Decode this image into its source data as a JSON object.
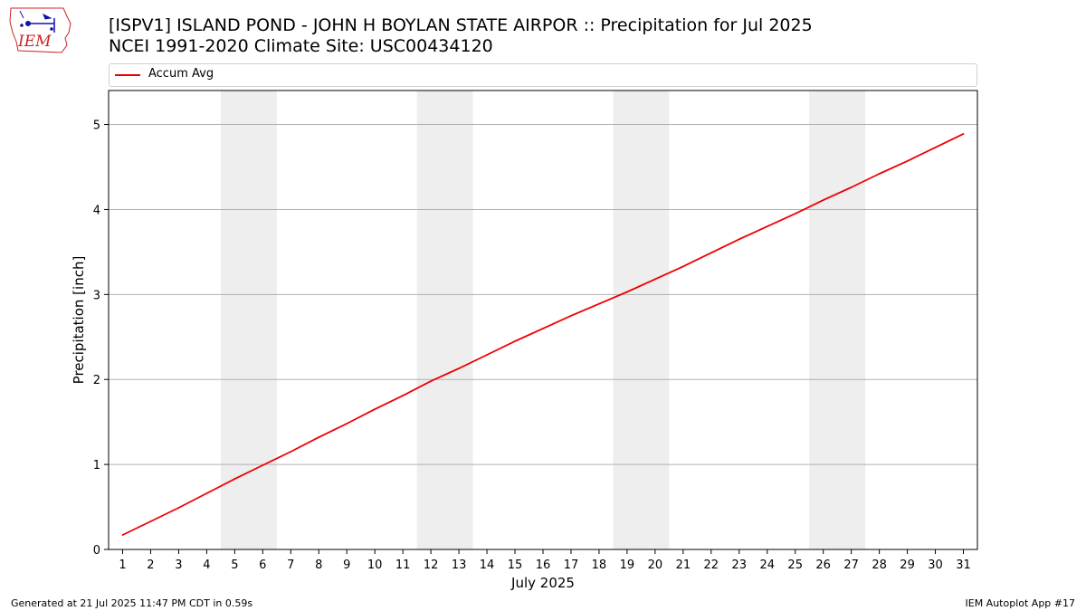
{
  "header": {
    "title_line1": "[ISPV1] ISLAND POND - JOHN H BOYLAN STATE AIRPOR :: Precipitation for Jul 2025",
    "title_line2": "NCEI 1991-2020 Climate Site: USC00434120"
  },
  "logo": {
    "text": "IEM"
  },
  "footer": {
    "left": "Generated at 21 Jul 2025 11:47 PM CDT in 0.59s",
    "right": "IEM Autoplot App #17"
  },
  "colors": {
    "series": "#ee0000",
    "weekend_band": "#eeeeee",
    "grid": "#b0b0b0",
    "logo_accent": "#cc2222",
    "logo_blue": "#1111aa"
  },
  "chart_data": {
    "type": "line",
    "xlabel": "July 2025",
    "ylabel": "Precipitation [inch]",
    "xlim": [
      0.5,
      31.5
    ],
    "ylim": [
      0,
      5.4
    ],
    "x": [
      1,
      2,
      3,
      4,
      5,
      6,
      7,
      8,
      9,
      10,
      11,
      12,
      13,
      14,
      15,
      16,
      17,
      18,
      19,
      20,
      21,
      22,
      23,
      24,
      25,
      26,
      27,
      28,
      29,
      30,
      31
    ],
    "x_tick_labels": [
      "1",
      "2",
      "3",
      "4",
      "5",
      "6",
      "7",
      "8",
      "9",
      "10",
      "11",
      "12",
      "13",
      "14",
      "15",
      "16",
      "17",
      "18",
      "19",
      "20",
      "21",
      "22",
      "23",
      "24",
      "25",
      "26",
      "27",
      "28",
      "29",
      "30",
      "31"
    ],
    "y_ticks": [
      0,
      1,
      2,
      3,
      4,
      5
    ],
    "y_tick_labels": [
      "0",
      "1",
      "2",
      "3",
      "4",
      "5"
    ],
    "weekend_bands": [
      [
        4.5,
        6.5
      ],
      [
        11.5,
        13.5
      ],
      [
        18.5,
        20.5
      ],
      [
        25.5,
        27.5
      ]
    ],
    "grid": "y",
    "legend_position": "top",
    "series": [
      {
        "name": "Accum Avg",
        "values": [
          0.17,
          0.33,
          0.49,
          0.66,
          0.83,
          0.99,
          1.15,
          1.32,
          1.48,
          1.65,
          1.81,
          1.98,
          2.13,
          2.29,
          2.45,
          2.6,
          2.75,
          2.89,
          3.03,
          3.18,
          3.33,
          3.49,
          3.65,
          3.8,
          3.95,
          4.11,
          4.26,
          4.42,
          4.57,
          4.73,
          4.89
        ]
      }
    ]
  }
}
